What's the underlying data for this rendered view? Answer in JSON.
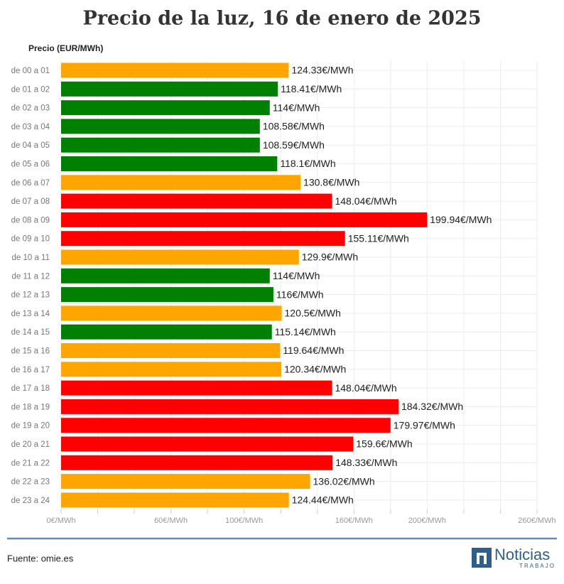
{
  "chart_data": {
    "type": "hbar",
    "title": "Precio de la luz, 16 de enero de 2025",
    "y_label": "Precio (EUR/MWh)",
    "categories": [
      "de 00 a 01",
      "de 01 a 02",
      "de 02 a 03",
      "de 03 a 04",
      "de 04 a 05",
      "de 05 a 06",
      "de 06 a 07",
      "de 07 a 08",
      "de 08 a 09",
      "de 09 a 10",
      "de 10 a 11",
      "de 11 a 12",
      "de 12 a 13",
      "de 13 a 14",
      "de 14 a 15",
      "de 15 a 16",
      "de 16 a 17",
      "de 17 a 18",
      "de 18 a 19",
      "de 19 a 20",
      "de 20 a 21",
      "de 21 a 22",
      "de 22 a 23",
      "de 23 a 24"
    ],
    "values": [
      124.33,
      118.41,
      114,
      108.58,
      108.59,
      118.1,
      130.8,
      148.04,
      199.94,
      155.11,
      129.9,
      114,
      116,
      120.5,
      115.14,
      119.64,
      120.34,
      148.04,
      184.32,
      179.97,
      159.6,
      148.33,
      136.02,
      124.44
    ],
    "value_labels": [
      "124.33€/MWh",
      "118.41€/MWh",
      "114€/MWh",
      "108.58€/MWh",
      "108.59€/MWh",
      "118.1€/MWh",
      "130.8€/MWh",
      "148.04€/MWh",
      "199.94€/MWh",
      "155.11€/MWh",
      "129.9€/MWh",
      "114€/MWh",
      "116€/MWh",
      "120.5€/MWh",
      "115.14€/MWh",
      "119.64€/MWh",
      "120.34€/MWh",
      "148.04€/MWh",
      "184.32€/MWh",
      "179.97€/MWh",
      "159.6€/MWh",
      "148.33€/MWh",
      "136.02€/MWh",
      "124.44€/MWh"
    ],
    "colors": [
      "#ffa500",
      "#008000",
      "#008000",
      "#008000",
      "#008000",
      "#008000",
      "#ffa500",
      "#ff0000",
      "#ff0000",
      "#ff0000",
      "#ffa500",
      "#008000",
      "#008000",
      "#ffa500",
      "#008000",
      "#ffa500",
      "#ffa500",
      "#ff0000",
      "#ff0000",
      "#ff0000",
      "#ff0000",
      "#ff0000",
      "#ffa500",
      "#ffa500"
    ],
    "xlim": [
      0,
      260
    ],
    "xticks": [
      {
        "value": 0,
        "label": "0€/MWh"
      },
      {
        "value": 20,
        "label": null
      },
      {
        "value": 40,
        "label": null
      },
      {
        "value": 60,
        "label": "60€/MWh"
      },
      {
        "value": 80,
        "label": null
      },
      {
        "value": 100,
        "label": "100€/MWh"
      },
      {
        "value": 120,
        "label": null
      },
      {
        "value": 140,
        "label": null
      },
      {
        "value": 160,
        "label": "160€/MWh"
      },
      {
        "value": 180,
        "label": null
      },
      {
        "value": 200,
        "label": "200€/MWh"
      },
      {
        "value": 220,
        "label": null
      },
      {
        "value": 240,
        "label": null
      },
      {
        "value": 260,
        "label": "260€/MWh"
      }
    ],
    "grid": true
  },
  "footer": {
    "source": "Fuente: omie.es",
    "logo_name": "Noticias",
    "logo_tagline": "TRABAJO"
  }
}
